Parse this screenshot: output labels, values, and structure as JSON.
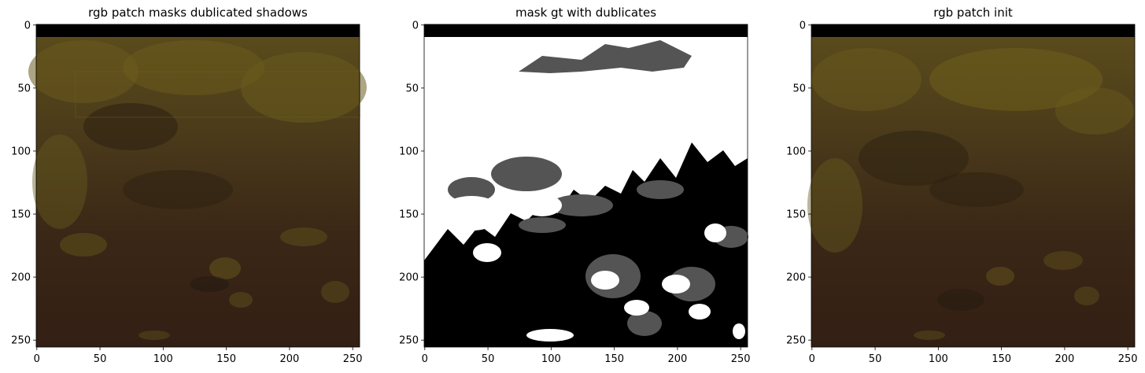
{
  "chart_data": [
    {
      "type": "heatmap",
      "title": "rgb patch masks dublicated shadows",
      "xlabel": "",
      "ylabel": "",
      "xlim": [
        0,
        256
      ],
      "ylim": [
        256,
        0
      ],
      "xticks": [
        0,
        50,
        100,
        150,
        200,
        250
      ],
      "yticks": [
        0,
        50,
        100,
        150,
        200,
        250
      ],
      "image": "rgb aerial patch (dark olive/brown vegetation) with duplicated shadow regions; black band in rows 0-10",
      "colors": {
        "top_band": "#000000",
        "light": "#6e5f1c",
        "dark": "#2d2012",
        "base": "#3a2615"
      }
    },
    {
      "type": "heatmap",
      "title": "mask gt with dublicates",
      "xlabel": "",
      "ylabel": "",
      "xlim": [
        0,
        256
      ],
      "ylim": [
        256,
        0
      ],
      "xticks": [
        0,
        50,
        100,
        150,
        200,
        250
      ],
      "yticks": [
        0,
        50,
        100,
        150,
        200,
        250
      ],
      "image": "segmentation mask with three classes: white, gray (duplicates), black; white dominant on top, black dominant on bottom",
      "colors": {
        "top_band": "#000000",
        "white": "#ffffff",
        "gray": "#545454",
        "black": "#000000"
      }
    },
    {
      "type": "heatmap",
      "title": "rgb patch init",
      "xlabel": "",
      "ylabel": "",
      "xlim": [
        0,
        256
      ],
      "ylim": [
        256,
        0
      ],
      "xticks": [
        0,
        50,
        100,
        150,
        200,
        250
      ],
      "yticks": [
        0,
        50,
        100,
        150,
        200,
        250
      ],
      "image": "original rgb aerial patch (dark olive/brown vegetation); black band in rows 0-10",
      "colors": {
        "top_band": "#000000",
        "light": "#6e5f1c",
        "dark": "#2d2012",
        "base": "#3a2615"
      }
    }
  ]
}
